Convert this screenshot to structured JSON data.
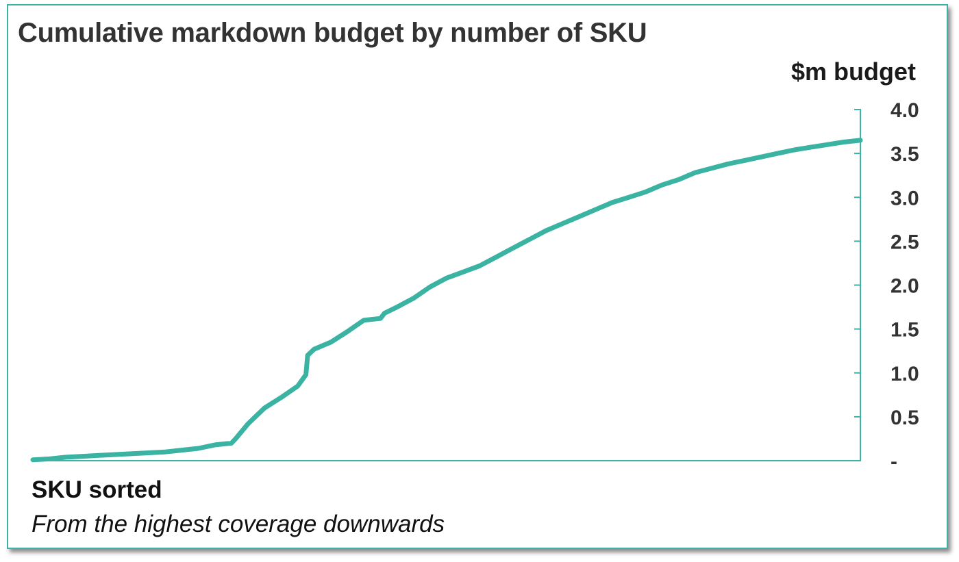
{
  "chart_data": {
    "type": "line",
    "title": "Cumulative markdown budget by number of SKU",
    "ylabel": "$m budget",
    "xlabel": "SKU sorted",
    "xlabel_note": "From the highest coverage downwards",
    "ylim": [
      0,
      4.0
    ],
    "yticks": [
      0,
      0.5,
      1.0,
      1.5,
      2.0,
      2.5,
      3.0,
      3.5,
      4.0
    ],
    "ytick_labels": [
      "-",
      "0.5",
      "1.0",
      "1.5",
      "2.0",
      "2.5",
      "3.0",
      "3.5",
      "4.0"
    ],
    "y_axis_position": "right",
    "grid": false,
    "series_color": "#3ab3a3",
    "x": [
      0,
      2,
      4,
      6,
      8,
      10,
      12,
      14,
      16,
      18,
      20,
      22,
      24,
      24.5,
      26,
      28,
      30,
      32,
      33,
      33.2,
      34,
      36,
      38,
      40,
      42,
      42.5,
      44,
      46,
      48,
      50,
      52,
      54,
      56,
      58,
      60,
      62,
      64,
      66,
      68,
      70,
      72,
      74,
      76,
      78,
      80,
      82,
      84,
      86,
      88,
      90,
      92,
      94,
      96,
      98,
      100
    ],
    "y": [
      0.01,
      0.02,
      0.04,
      0.05,
      0.06,
      0.07,
      0.08,
      0.09,
      0.1,
      0.12,
      0.14,
      0.18,
      0.2,
      0.25,
      0.42,
      0.6,
      0.72,
      0.85,
      0.98,
      1.2,
      1.27,
      1.35,
      1.47,
      1.6,
      1.62,
      1.68,
      1.75,
      1.85,
      1.98,
      2.08,
      2.15,
      2.22,
      2.32,
      2.42,
      2.52,
      2.62,
      2.7,
      2.78,
      2.86,
      2.94,
      3.0,
      3.06,
      3.14,
      3.2,
      3.28,
      3.33,
      3.38,
      3.42,
      3.46,
      3.5,
      3.54,
      3.57,
      3.6,
      3.63,
      3.65
    ]
  }
}
